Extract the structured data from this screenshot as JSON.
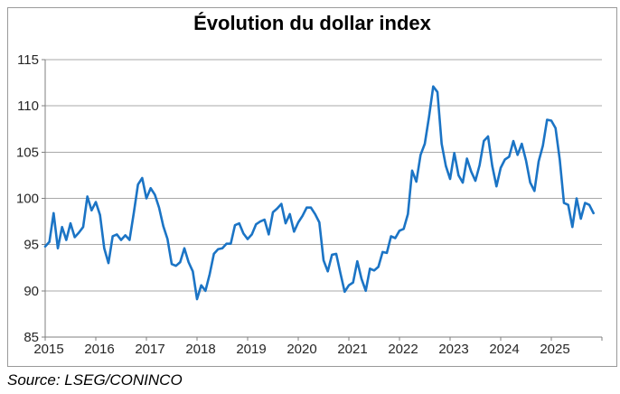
{
  "chart_data": {
    "type": "line",
    "title": "Évolution du dollar index",
    "xlabel": "",
    "ylabel": "",
    "x_tick_labels": [
      "2015",
      "2016",
      "2017",
      "2018",
      "2019",
      "2020",
      "2021",
      "2022",
      "2023",
      "2024",
      "2025"
    ],
    "y_ticks": [
      85,
      90,
      95,
      100,
      105,
      110,
      115
    ],
    "ylim": [
      85,
      115
    ],
    "grid": true,
    "legend": "none",
    "frequency": "monthly",
    "x_range": [
      "2015-01",
      "2025-11"
    ],
    "series": [
      {
        "name": "Dollar index",
        "color": "#1B74C5",
        "values": [
          94.8,
          95.3,
          98.4,
          94.6,
          96.9,
          95.5,
          97.3,
          95.8,
          96.3,
          96.9,
          100.2,
          98.7,
          99.6,
          98.2,
          94.6,
          93.0,
          95.9,
          96.1,
          95.5,
          96.0,
          95.5,
          98.4,
          101.5,
          102.2,
          100.0,
          101.1,
          100.4,
          99.0,
          97.0,
          95.6,
          92.9,
          92.7,
          93.1,
          94.6,
          93.1,
          92.1,
          89.1,
          90.6,
          90.0,
          91.8,
          94.0,
          94.5,
          94.6,
          95.1,
          95.1,
          97.1,
          97.3,
          96.2,
          95.6,
          96.1,
          97.2,
          97.5,
          97.7,
          96.1,
          98.5,
          98.9,
          99.4,
          97.3,
          98.3,
          96.4,
          97.4,
          98.1,
          99.0,
          99.0,
          98.3,
          97.4,
          93.3,
          92.1,
          93.9,
          94.0,
          91.9,
          89.9,
          90.6,
          90.9,
          93.2,
          91.3,
          90.0,
          92.4,
          92.2,
          92.6,
          94.2,
          94.1,
          95.9,
          95.7,
          96.5,
          96.7,
          98.3,
          103.0,
          101.8,
          104.7,
          105.9,
          108.8,
          112.1,
          111.5,
          105.9,
          103.5,
          102.1,
          104.9,
          102.5,
          101.7,
          104.3,
          102.9,
          101.9,
          103.6,
          106.2,
          106.7,
          103.5,
          101.3,
          103.3,
          104.2,
          104.5,
          106.2,
          104.7,
          105.9,
          104.1,
          101.7,
          100.8,
          104.0,
          105.7,
          108.5,
          108.4,
          107.6,
          104.2,
          99.5,
          99.3,
          96.9,
          100.0,
          97.8,
          99.5,
          99.3,
          98.4
        ]
      }
    ]
  },
  "source": {
    "text": "Source: LSEG/CONINCO"
  },
  "colors": {
    "line": "#1B74C5",
    "grid": "#a9a9a9",
    "axis": "#7f7f7f",
    "tick_label": "#262626",
    "frame_border": "#9a9a9a",
    "background": "#ffffff"
  }
}
